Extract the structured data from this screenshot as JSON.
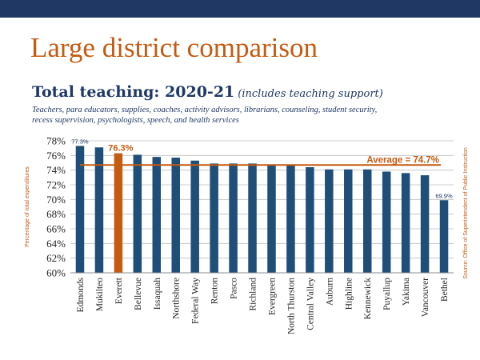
{
  "slide": {
    "title": "Large district comparison",
    "subtitle_main": "Total teaching:  2020-21",
    "subtitle_note": "(includes teaching support)",
    "description": "Teachers, para educators, supplies, coaches, activity advisors, librarians, counseling, student security, recess supervision, psychologists, speech, and health services"
  },
  "colors": {
    "band": "#1f3864",
    "bar": "#1f4e79",
    "highlight": "#c55a11",
    "title": "#c55a11",
    "average_line": "#c55a11"
  },
  "chart_data": {
    "type": "bar",
    "ylabel": "Percentage of total expenditures",
    "source": "Source: Office of Superintendent of Public Instruction",
    "ylim": [
      60,
      78
    ],
    "yticks": [
      "60%",
      "62%",
      "64%",
      "66%",
      "68%",
      "70%",
      "72%",
      "74%",
      "76%",
      "78%"
    ],
    "grid": true,
    "categories": [
      "Edmonds",
      "Mukilteo",
      "Everett",
      "Bellevue",
      "Issaquah",
      "Northshore",
      "Federal Way",
      "Renton",
      "Pasco",
      "Richland",
      "Evergreen",
      "North Thurston",
      "Central Valley",
      "Auburn",
      "Highline",
      "Kennewick",
      "Puyallup",
      "Yakima",
      "Vancouver",
      "Bethel"
    ],
    "values": [
      77.3,
      77.1,
      76.3,
      76.1,
      75.8,
      75.7,
      75.3,
      74.9,
      74.9,
      74.9,
      74.7,
      74.7,
      74.4,
      74.1,
      74.1,
      74.1,
      73.8,
      73.6,
      73.3,
      69.9
    ],
    "highlight_index": 2,
    "data_labels": [
      {
        "index": 0,
        "text": "77.3%"
      },
      {
        "index": 2,
        "text": "76.3%"
      },
      {
        "index": 19,
        "text": "69.9%"
      }
    ],
    "average": {
      "value": 74.7,
      "label": "Average = 74.7%"
    }
  }
}
